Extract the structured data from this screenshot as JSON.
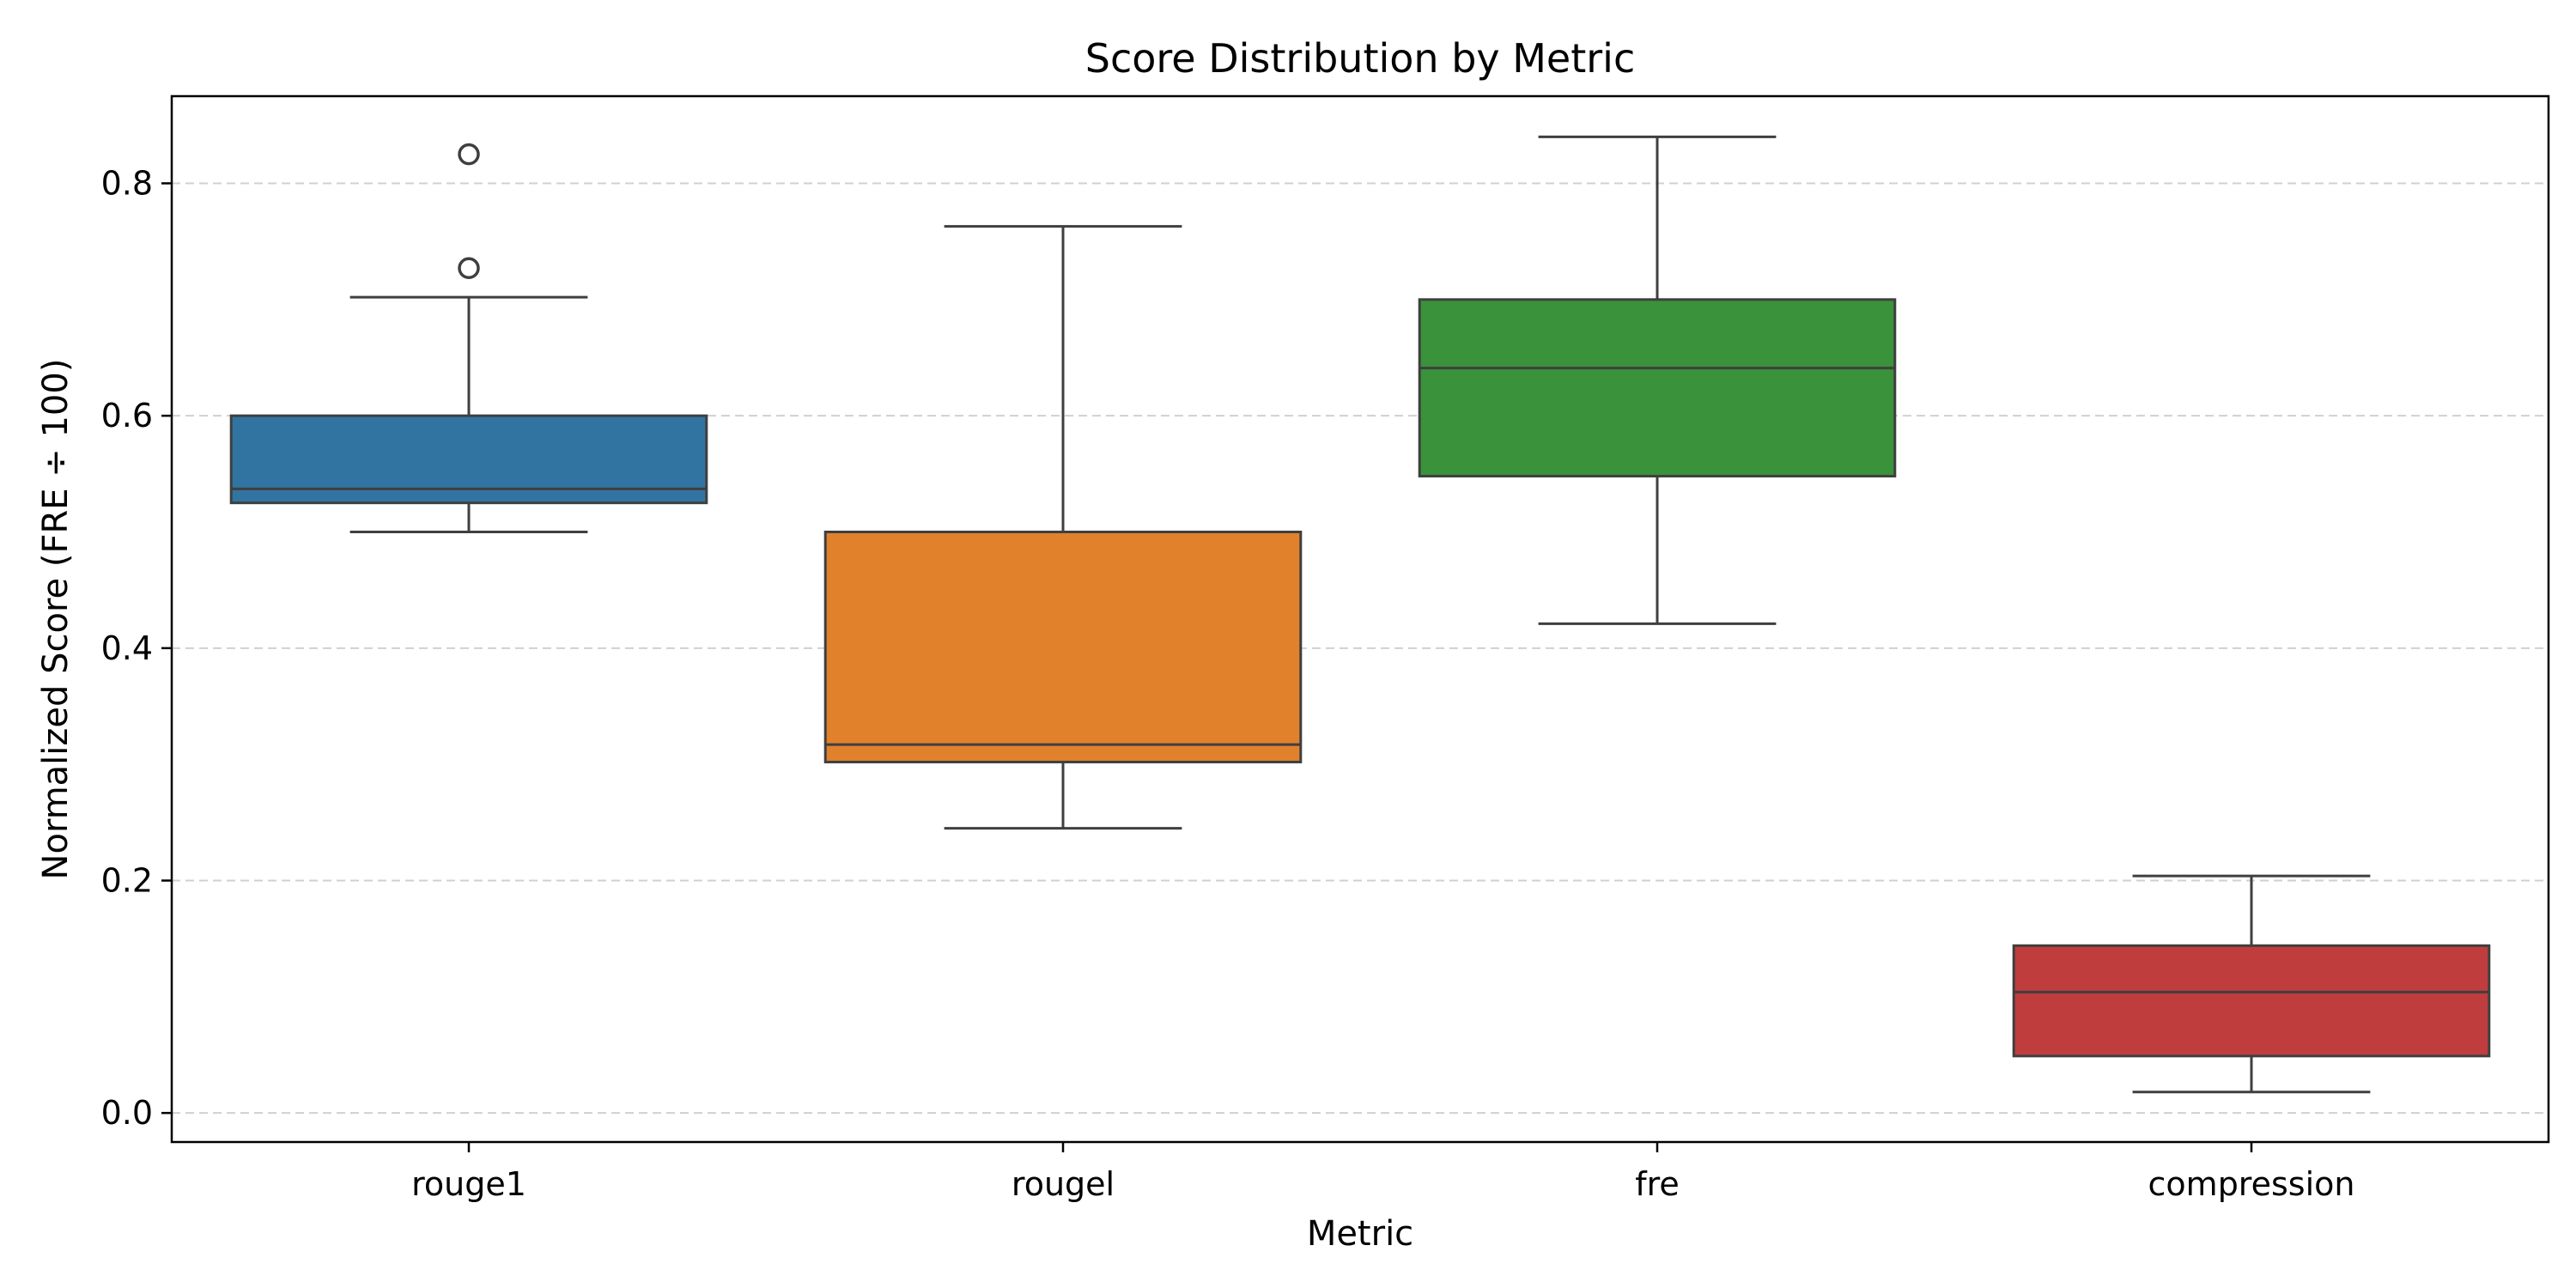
{
  "chart_data": {
    "type": "box",
    "title": "Score Distribution by Metric",
    "xlabel": "Metric",
    "ylabel": "Normalized Score (FRE ÷ 100)",
    "ylim": [
      -0.025,
      0.875
    ],
    "yticks": [
      0.0,
      0.2,
      0.4,
      0.6,
      0.8
    ],
    "ytick_labels": [
      "0.0",
      "0.2",
      "0.4",
      "0.6",
      "0.8"
    ],
    "grid": "y-dashed",
    "categories": [
      "rouge1",
      "rougel",
      "fre",
      "compression"
    ],
    "colors": [
      "#3274a1",
      "#e1812c",
      "#3a923a",
      "#c03d3e"
    ],
    "edge_color": "#3f3f3f",
    "boxes": [
      {
        "category": "rouge1",
        "whislo": 0.5,
        "q1": 0.525,
        "med": 0.537,
        "q3": 0.6,
        "whishi": 0.702,
        "fliers": [
          0.727,
          0.825
        ]
      },
      {
        "category": "rougel",
        "whislo": 0.245,
        "q1": 0.302,
        "med": 0.317,
        "q3": 0.5,
        "whishi": 0.763,
        "fliers": []
      },
      {
        "category": "fre",
        "whislo": 0.421,
        "q1": 0.548,
        "med": 0.641,
        "q3": 0.7,
        "whishi": 0.84,
        "fliers": []
      },
      {
        "category": "compression",
        "whislo": 0.018,
        "q1": 0.049,
        "med": 0.104,
        "q3": 0.144,
        "whishi": 0.204,
        "fliers": []
      }
    ]
  }
}
